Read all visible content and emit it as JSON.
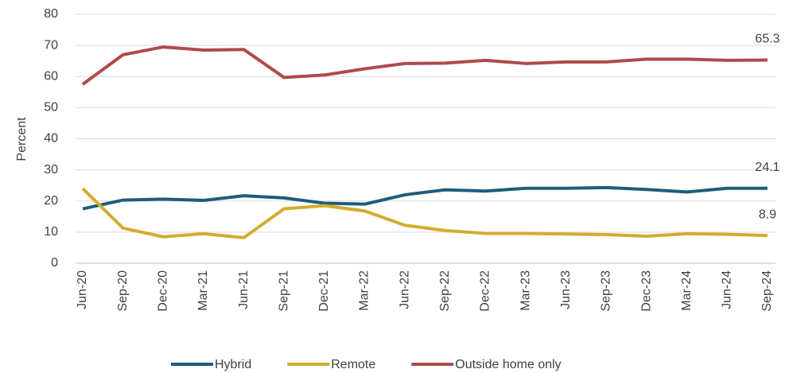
{
  "chart_data": {
    "type": "line",
    "y_label": "Percent",
    "categories": [
      "Jun-20",
      "Sep-20",
      "Dec-20",
      "Mar-21",
      "Jun-21",
      "Sep-21",
      "Dec-21",
      "Mar-22",
      "Jun-22",
      "Sep-22",
      "Dec-22",
      "Mar-23",
      "Jun-23",
      "Sep-23",
      "Dec-23",
      "Mar-24",
      "Jun-24",
      "Sep-24"
    ],
    "series": [
      {
        "name": "Hybrid",
        "color": "#1f5c7a",
        "values": [
          17.5,
          20.3,
          20.6,
          20.2,
          21.7,
          21.0,
          19.3,
          19.0,
          22.0,
          23.6,
          23.2,
          24.1,
          24.1,
          24.3,
          23.7,
          22.9,
          24.1,
          24.1
        ]
      },
      {
        "name": "Remote",
        "color": "#d4ac2c",
        "values": [
          24.0,
          11.3,
          8.5,
          9.5,
          8.2,
          17.5,
          18.5,
          16.8,
          12.2,
          10.5,
          9.6,
          9.6,
          9.4,
          9.2,
          8.7,
          9.5,
          9.3,
          8.9
        ]
      },
      {
        "name": "Outside home only",
        "color": "#b04a4a",
        "values": [
          57.5,
          67.0,
          69.5,
          68.5,
          68.7,
          59.7,
          60.5,
          62.5,
          64.2,
          64.3,
          65.2,
          64.2,
          64.7,
          64.7,
          65.6,
          65.6,
          65.2,
          65.3
        ]
      }
    ],
    "ylim": [
      0,
      80
    ],
    "yticks": [
      0,
      10,
      20,
      30,
      40,
      50,
      60,
      70,
      80
    ],
    "grid": true,
    "legend": "bottom"
  }
}
